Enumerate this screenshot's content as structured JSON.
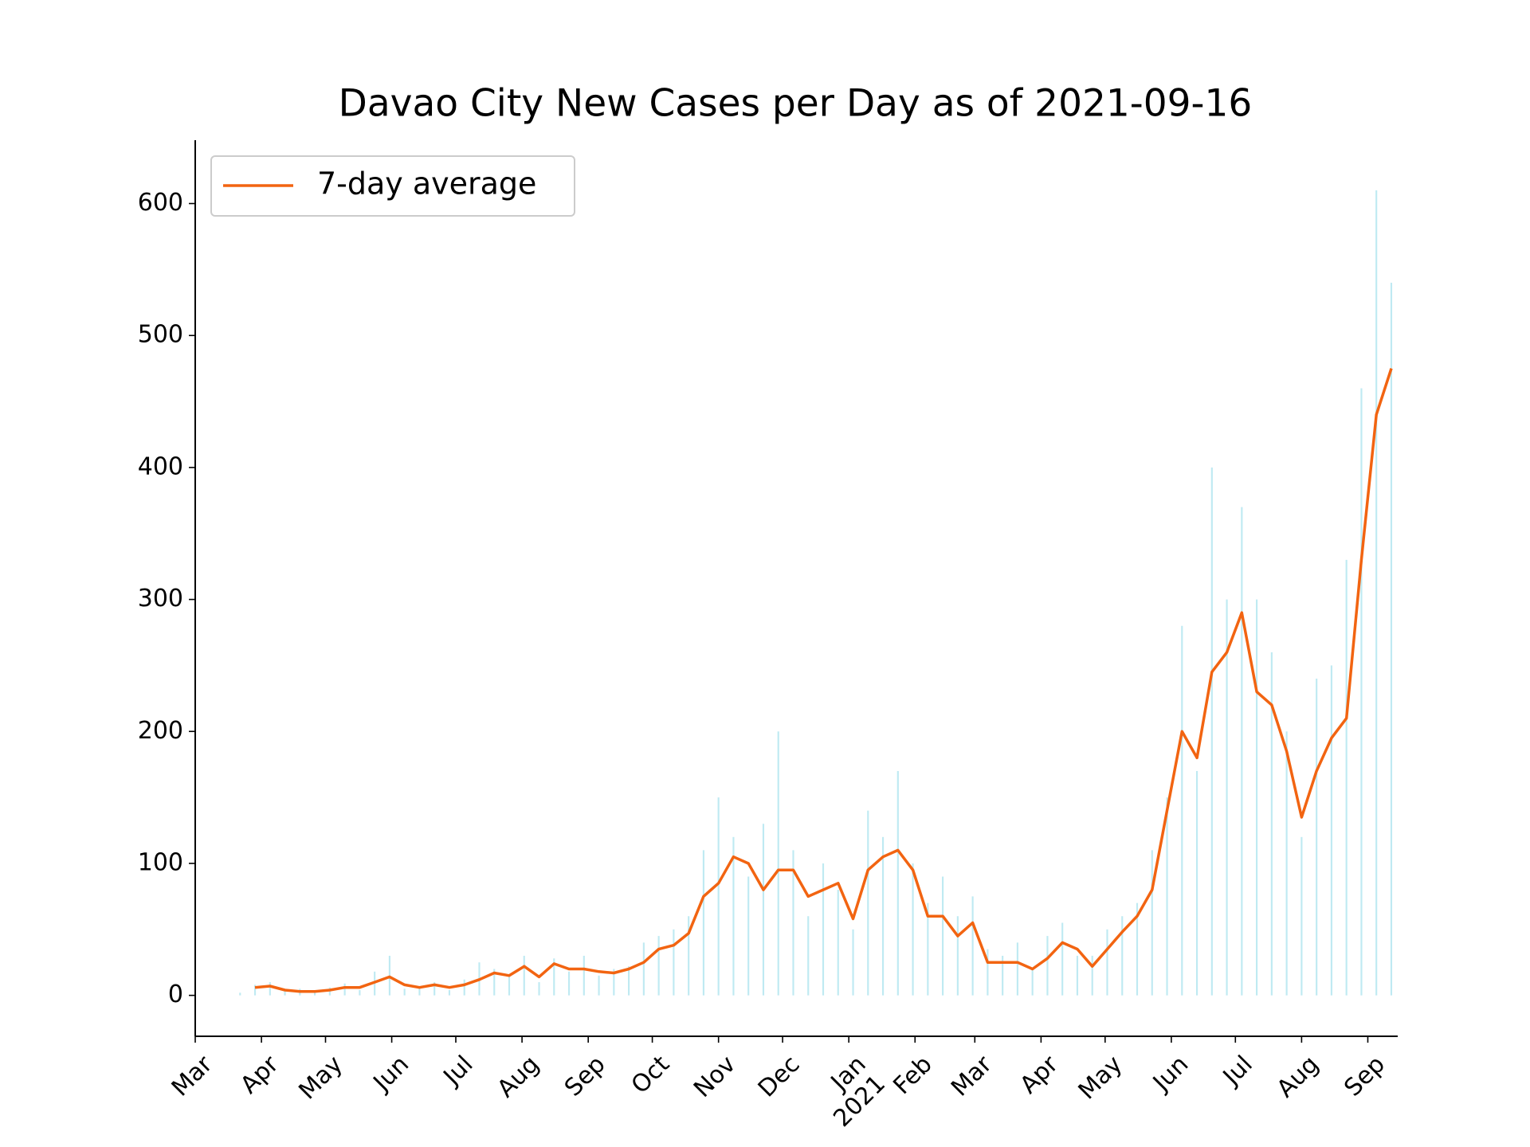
{
  "chart_data": {
    "type": "line",
    "title": "Davao City New Cases per Day as of 2021-09-16",
    "x": [
      "2020-03-22",
      "2020-03-29",
      "2020-04-05",
      "2020-04-12",
      "2020-04-19",
      "2020-04-26",
      "2020-05-03",
      "2020-05-10",
      "2020-05-17",
      "2020-05-24",
      "2020-05-31",
      "2020-06-07",
      "2020-06-14",
      "2020-06-21",
      "2020-06-28",
      "2020-07-05",
      "2020-07-12",
      "2020-07-19",
      "2020-07-26",
      "2020-08-02",
      "2020-08-09",
      "2020-08-16",
      "2020-08-23",
      "2020-08-30",
      "2020-09-06",
      "2020-09-13",
      "2020-09-20",
      "2020-09-27",
      "2020-10-04",
      "2020-10-11",
      "2020-10-18",
      "2020-10-25",
      "2020-11-01",
      "2020-11-08",
      "2020-11-15",
      "2020-11-22",
      "2020-11-29",
      "2020-12-06",
      "2020-12-13",
      "2020-12-20",
      "2020-12-27",
      "2021-01-03",
      "2021-01-10",
      "2021-01-17",
      "2021-01-24",
      "2021-01-31",
      "2021-02-07",
      "2021-02-14",
      "2021-02-21",
      "2021-02-28",
      "2021-03-07",
      "2021-03-14",
      "2021-03-21",
      "2021-03-28",
      "2021-04-04",
      "2021-04-11",
      "2021-04-18",
      "2021-04-25",
      "2021-05-02",
      "2021-05-09",
      "2021-05-16",
      "2021-05-23",
      "2021-05-30",
      "2021-06-06",
      "2021-06-13",
      "2021-06-20",
      "2021-06-27",
      "2021-07-04",
      "2021-07-11",
      "2021-07-18",
      "2021-07-25",
      "2021-08-01",
      "2021-08-08",
      "2021-08-15",
      "2021-08-22",
      "2021-08-29",
      "2021-09-05",
      "2021-09-12"
    ],
    "bars": {
      "color": "#bfeaf2",
      "values": [
        2,
        8,
        10,
        3,
        5,
        2,
        6,
        9,
        4,
        18,
        30,
        5,
        7,
        10,
        4,
        12,
        25,
        20,
        14,
        30,
        10,
        28,
        18,
        30,
        15,
        20,
        22,
        40,
        45,
        50,
        60,
        110,
        150,
        120,
        90,
        130,
        200,
        110,
        60,
        100,
        80,
        50,
        140,
        120,
        170,
        100,
        70,
        90,
        60,
        75,
        35,
        30,
        40,
        20,
        45,
        55,
        30,
        30,
        50,
        60,
        70,
        110,
        150,
        280,
        170,
        400,
        300,
        370,
        300,
        260,
        200,
        120,
        240,
        250,
        330,
        460,
        610,
        540
      ]
    },
    "series": [
      {
        "name": "7-day average",
        "color": "#f26411",
        "values": [
          null,
          6,
          7,
          4,
          3,
          3,
          4,
          6,
          6,
          10,
          14,
          8,
          6,
          8,
          6,
          8,
          12,
          17,
          15,
          22,
          14,
          24,
          20,
          20,
          18,
          17,
          20,
          25,
          35,
          38,
          47,
          75,
          85,
          105,
          100,
          80,
          95,
          95,
          75,
          80,
          85,
          58,
          95,
          105,
          110,
          95,
          60,
          60,
          45,
          55,
          25,
          25,
          25,
          20,
          28,
          40,
          35,
          22,
          35,
          48,
          60,
          80,
          140,
          200,
          180,
          245,
          260,
          290,
          230,
          220,
          185,
          135,
          170,
          195,
          210,
          330,
          440,
          475
        ]
      }
    ],
    "xlim": [
      "2020-03-01",
      "2021-09-15"
    ],
    "xticks": [
      {
        "value": "2020-03-01",
        "label": "Mar"
      },
      {
        "value": "2020-04-01",
        "label": "Apr"
      },
      {
        "value": "2020-05-01",
        "label": "May"
      },
      {
        "value": "2020-06-01",
        "label": "Jun"
      },
      {
        "value": "2020-07-01",
        "label": "Jul"
      },
      {
        "value": "2020-08-01",
        "label": "Aug"
      },
      {
        "value": "2020-09-01",
        "label": "Sep"
      },
      {
        "value": "2020-10-01",
        "label": "Oct"
      },
      {
        "value": "2020-11-01",
        "label": "Nov"
      },
      {
        "value": "2020-12-01",
        "label": "Dec"
      },
      {
        "value": "2021-01-01",
        "label": "Jan\n2021"
      },
      {
        "value": "2021-02-01",
        "label": "Feb"
      },
      {
        "value": "2021-03-01",
        "label": "Mar"
      },
      {
        "value": "2021-04-01",
        "label": "Apr"
      },
      {
        "value": "2021-05-01",
        "label": "May"
      },
      {
        "value": "2021-06-01",
        "label": "Jun"
      },
      {
        "value": "2021-07-01",
        "label": "Jul"
      },
      {
        "value": "2021-08-01",
        "label": "Aug"
      },
      {
        "value": "2021-09-01",
        "label": "Sep"
      }
    ],
    "ylim": [
      -31,
      648
    ],
    "yticks": [
      0,
      100,
      200,
      300,
      400,
      500,
      600
    ],
    "legend": "upper left"
  }
}
